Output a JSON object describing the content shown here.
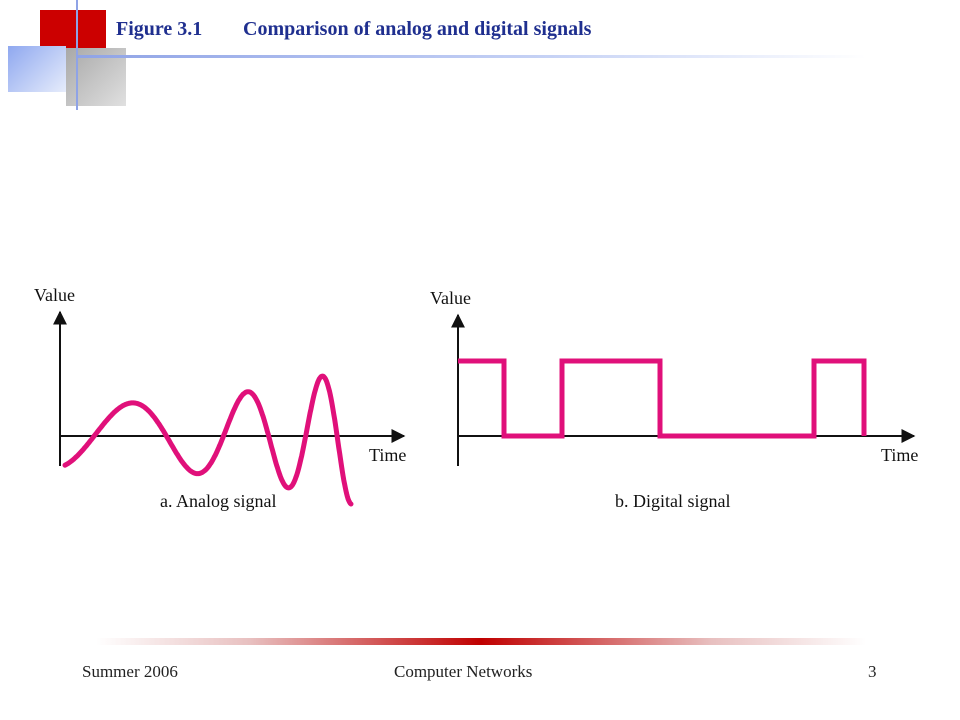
{
  "header": {
    "figure_number": "Figure 3.1",
    "title": "Comparison of analog and digital signals"
  },
  "analog": {
    "y_axis_label": "Value",
    "x_axis_label": "Time",
    "caption": "a. Analog signal"
  },
  "digital": {
    "y_axis_label": "Value",
    "x_axis_label": "Time",
    "caption": "b. Digital signal"
  },
  "footer": {
    "left": "Summer 2006",
    "center": "Computer Networks",
    "page": "3"
  },
  "colors": {
    "signal": "#e0107a",
    "axis": "#111111",
    "title": "#1f2f8f",
    "accent_red": "#cc0000",
    "accent_blue": "#9fb4f0"
  }
}
